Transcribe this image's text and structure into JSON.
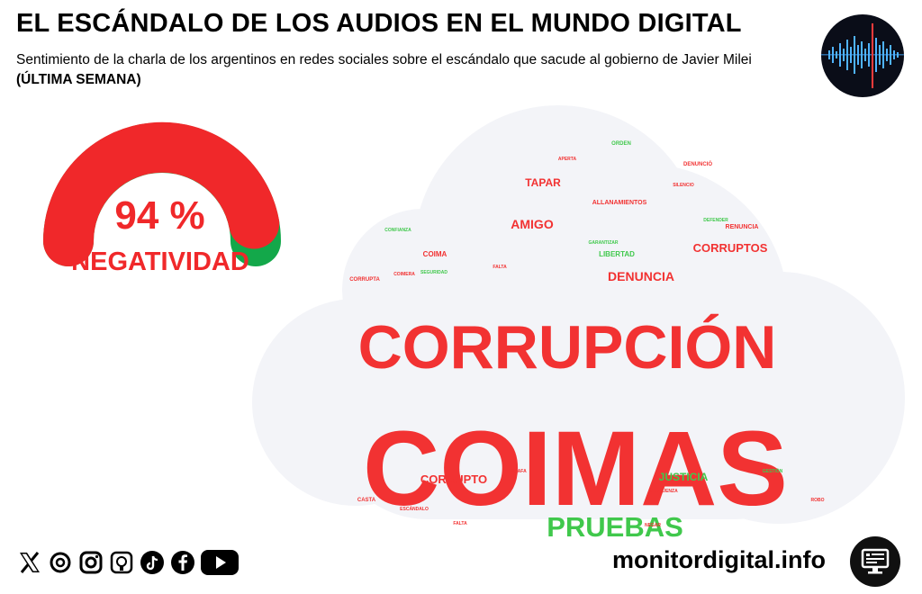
{
  "header": {
    "title": "EL ESCÁNDALO DE LOS AUDIOS EN EL MUNDO DIGITAL",
    "subtitle": "Sentimiento de la charla de los argentinos en redes sociales sobre el escándalo que sacude al gobierno de Javier Milei",
    "subtitle_bold": "(ÚLTIMA SEMANA)"
  },
  "gauge": {
    "value_text": "94 %",
    "value": 94,
    "label": "NEGATIVIDAD",
    "colors": {
      "negative": "#f0282a",
      "positive": "#13a84a"
    }
  },
  "wordcloud": {
    "colors": {
      "negative": "#f23232",
      "positive": "#40c84c",
      "cloud": "#f3f4f8"
    },
    "words": [
      {
        "text": "ORDEN",
        "color": "g"
      },
      {
        "text": "APERTA",
        "color": "r"
      },
      {
        "text": "DENUNCIÓ",
        "color": "r"
      },
      {
        "text": "TAPAR",
        "color": "r"
      },
      {
        "text": "SILENCIO",
        "color": "r"
      },
      {
        "text": "ALLANAMIENTOS",
        "color": "r"
      },
      {
        "text": "AMIGO",
        "color": "r"
      },
      {
        "text": "DEFENDER",
        "color": "g"
      },
      {
        "text": "RENUNCIA",
        "color": "r"
      },
      {
        "text": "CONFIANZA",
        "color": "g"
      },
      {
        "text": "GARANTIZAR",
        "color": "g"
      },
      {
        "text": "CORRUPTOS",
        "color": "r"
      },
      {
        "text": "COIMA",
        "color": "r"
      },
      {
        "text": "LIBERTAD",
        "color": "g"
      },
      {
        "text": "FALTA",
        "color": "r"
      },
      {
        "text": "SEGURIDAD",
        "color": "g"
      },
      {
        "text": "CORRUPTA",
        "color": "r"
      },
      {
        "text": "COIMERA",
        "color": "r"
      },
      {
        "text": "DENUNCIA",
        "color": "r"
      },
      {
        "text": "CORRUPCIÓN",
        "color": "r"
      },
      {
        "text": "COIMAS",
        "color": "r"
      },
      {
        "text": "ESTAFA",
        "color": "r"
      },
      {
        "text": "CORRUPTO",
        "color": "r"
      },
      {
        "text": "JUSTICIA",
        "color": "g"
      },
      {
        "text": "GESTIÓN",
        "color": "g"
      },
      {
        "text": "VERGÜENZA",
        "color": "r"
      },
      {
        "text": "CASTA",
        "color": "r"
      },
      {
        "text": "ESCÁNDALO",
        "color": "r"
      },
      {
        "text": "PRUEBAS",
        "color": "g"
      },
      {
        "text": "FALTA",
        "color": "r"
      },
      {
        "text": "ROBO",
        "color": "r"
      },
      {
        "text": "NEGAR",
        "color": "r"
      }
    ]
  },
  "footer": {
    "social_icons": [
      "x-icon",
      "threads-icon",
      "instagram-icon",
      "tiktok-icon",
      "facebook-icon",
      "youtube-icon"
    ],
    "site": "monitordigital.info"
  }
}
